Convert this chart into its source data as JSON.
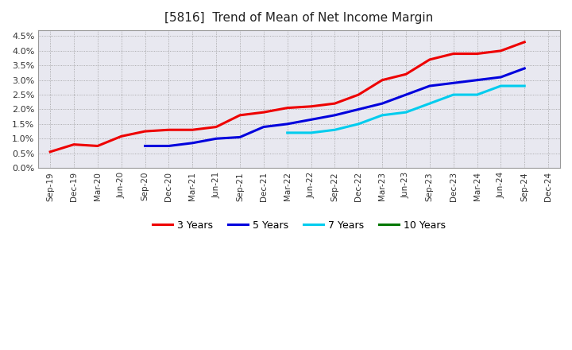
{
  "title": "[5816]  Trend of Mean of Net Income Margin",
  "title_fontsize": 11,
  "title_fontweight": "normal",
  "background_color": "#ffffff",
  "grid_color": "#aaaaaa",
  "plot_bg_color": "#e8e8f0",
  "x_labels": [
    "Sep-19",
    "Dec-19",
    "Mar-20",
    "Jun-20",
    "Sep-20",
    "Dec-20",
    "Mar-21",
    "Jun-21",
    "Sep-21",
    "Dec-21",
    "Mar-22",
    "Jun-22",
    "Sep-22",
    "Dec-22",
    "Mar-23",
    "Jun-23",
    "Sep-23",
    "Dec-23",
    "Mar-24",
    "Jun-24",
    "Sep-24",
    "Dec-24"
  ],
  "ylim": [
    0.0,
    0.047
  ],
  "yticks": [
    0.0,
    0.005,
    0.01,
    0.015,
    0.02,
    0.025,
    0.03,
    0.035,
    0.04,
    0.045
  ],
  "series": [
    {
      "label": "3 Years",
      "color": "#ee0000",
      "values": [
        0.0055,
        0.008,
        0.0075,
        0.0108,
        0.0125,
        0.013,
        0.013,
        0.014,
        0.018,
        0.019,
        0.0205,
        0.021,
        0.022,
        0.025,
        0.03,
        0.032,
        0.037,
        0.039,
        0.039,
        0.04,
        0.043,
        null
      ]
    },
    {
      "label": "5 Years",
      "color": "#0000dd",
      "values": [
        null,
        null,
        null,
        null,
        0.0075,
        0.0075,
        0.0085,
        0.01,
        0.0105,
        0.014,
        0.015,
        0.0165,
        0.018,
        0.02,
        0.022,
        0.025,
        0.028,
        0.029,
        0.03,
        0.031,
        0.034,
        null
      ]
    },
    {
      "label": "7 Years",
      "color": "#00ccee",
      "values": [
        null,
        null,
        null,
        null,
        null,
        null,
        null,
        null,
        null,
        null,
        0.012,
        0.012,
        0.013,
        0.015,
        0.018,
        0.019,
        0.022,
        0.025,
        0.025,
        0.028,
        0.028,
        null
      ]
    },
    {
      "label": "10 Years",
      "color": "#007700",
      "values": [
        null,
        null,
        null,
        null,
        null,
        null,
        null,
        null,
        null,
        null,
        null,
        null,
        null,
        null,
        null,
        null,
        null,
        null,
        null,
        null,
        null,
        null
      ]
    }
  ],
  "legend_labels": [
    "3 Years",
    "5 Years",
    "7 Years",
    "10 Years"
  ],
  "legend_colors": [
    "#ee0000",
    "#0000dd",
    "#00ccee",
    "#007700"
  ]
}
